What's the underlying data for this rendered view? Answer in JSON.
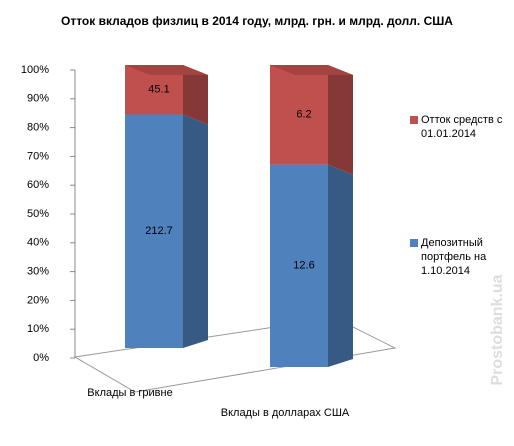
{
  "chart_data": {
    "type": "bar3d",
    "stacking": "percent",
    "title": "Отток вкладов физлиц в 2014 году, млрд. грн. и млрд. долл. США",
    "categories": [
      "Вклады в гривне",
      "Вклады в долларах США"
    ],
    "series": [
      {
        "name": "Депозитный портфель на 1.10.2014",
        "color": "#4f81bd",
        "values": [
          212.7,
          12.6
        ]
      },
      {
        "name": "Отток средств с 01.01.2014",
        "color": "#c0504d",
        "values": [
          45.1,
          6.2
        ]
      }
    ],
    "ylim": [
      0,
      100
    ],
    "yticks": [
      {
        "value": 0,
        "label": "0%"
      },
      {
        "value": 10,
        "label": "10%"
      },
      {
        "value": 20,
        "label": "20%"
      },
      {
        "value": 30,
        "label": "30%"
      },
      {
        "value": 40,
        "label": "40%"
      },
      {
        "value": 50,
        "label": "50%"
      },
      {
        "value": 60,
        "label": "60%"
      },
      {
        "value": 70,
        "label": "70%"
      },
      {
        "value": 80,
        "label": "80%"
      },
      {
        "value": 90,
        "label": "90%"
      },
      {
        "value": 100,
        "label": "100%"
      }
    ],
    "legend": "right",
    "watermark": "Prostobank.ua"
  }
}
